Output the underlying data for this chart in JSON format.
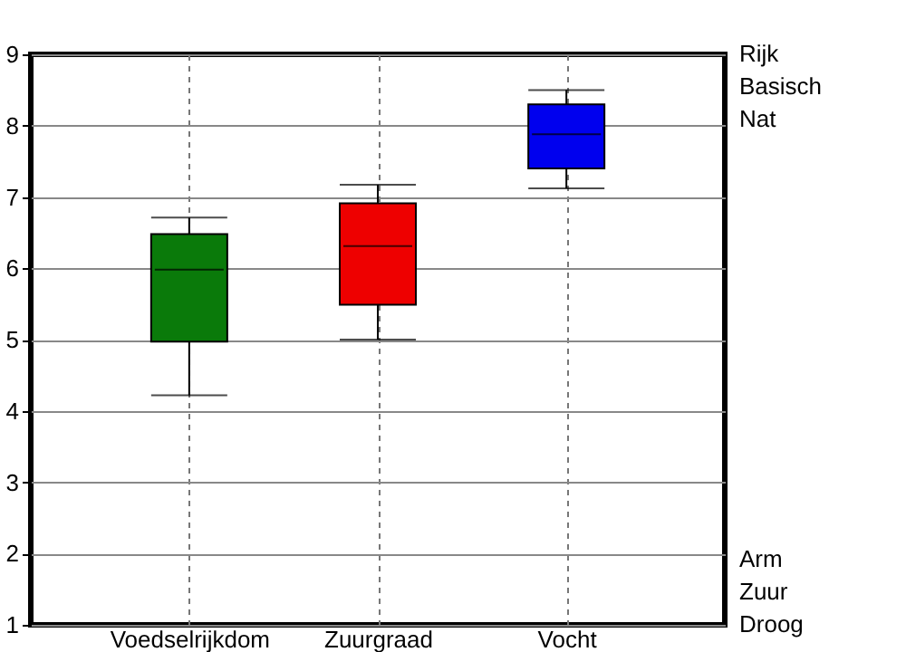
{
  "chart_data": {
    "type": "box",
    "categories": [
      "Voedselrijkdom",
      "Zuurgraad",
      "Vocht"
    ],
    "boxes": [
      {
        "low": 4.22,
        "q1": 4.97,
        "median": 5.98,
        "q3": 6.48,
        "high": 6.71
      },
      {
        "low": 5.0,
        "q1": 5.49,
        "median": 6.31,
        "q3": 6.91,
        "high": 7.17
      },
      {
        "low": 7.12,
        "q1": 7.4,
        "median": 7.88,
        "q3": 8.3,
        "high": 8.5
      }
    ],
    "colors": [
      "#0a7a0a",
      "#ee0000",
      "#0000ee"
    ],
    "ylim": [
      1,
      9
    ],
    "yticks": [
      1,
      2,
      3,
      4,
      5,
      6,
      7,
      8,
      9
    ],
    "grid": true,
    "annotations": [
      "Rijk",
      "Basisch",
      "Nat",
      "Arm",
      "Zuur",
      "Droog"
    ]
  }
}
